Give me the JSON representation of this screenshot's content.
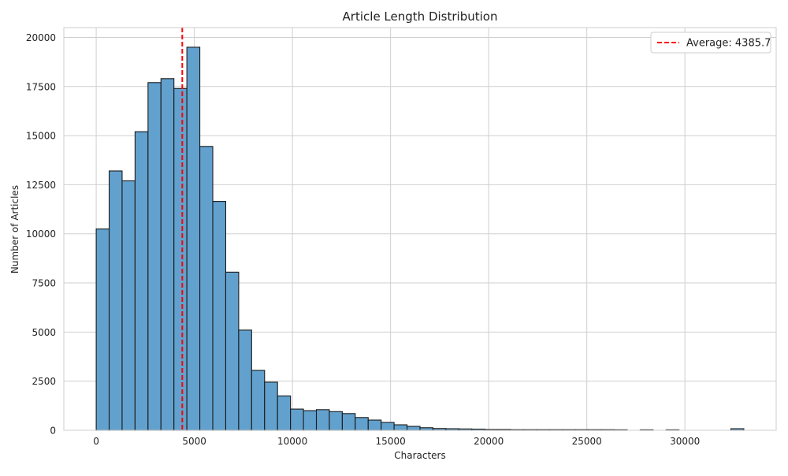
{
  "chart_data": {
    "type": "bar",
    "title": "Article Length Distribution",
    "xlabel": "Characters",
    "ylabel": "Number of Articles",
    "xlim": [
      -1650,
      34650
    ],
    "ylim": [
      0,
      20500
    ],
    "xticks": [
      0,
      5000,
      10000,
      15000,
      20000,
      25000,
      30000
    ],
    "yticks": [
      0,
      2500,
      5000,
      7500,
      10000,
      12500,
      15000,
      17500,
      20000
    ],
    "grid": true,
    "legend": {
      "placement": "top-right",
      "entries": [
        "Average: 4385.7"
      ]
    },
    "bar_color": "#5f9fcd",
    "bar_edge_color": "#1a1a1a",
    "bin_edges": [
      0,
      660,
      1320,
      1980,
      2640,
      3300,
      3960,
      4620,
      5280,
      5940,
      6600,
      7260,
      7920,
      8580,
      9240,
      9900,
      10560,
      11220,
      11880,
      12540,
      13200,
      13860,
      14520,
      15180,
      15840,
      16500,
      17160,
      17820,
      18480,
      19140,
      19800,
      20460,
      21120,
      21780,
      22440,
      23100,
      23760,
      24420,
      25080,
      25740,
      26400,
      27060,
      27720,
      28380,
      29040,
      29700,
      30360,
      31020,
      31680,
      32340,
      33000
    ],
    "counts": [
      10250,
      13200,
      12700,
      15200,
      17700,
      17900,
      17400,
      19500,
      14450,
      11650,
      8050,
      5100,
      3050,
      2450,
      1750,
      1080,
      1000,
      1050,
      950,
      850,
      650,
      520,
      400,
      280,
      200,
      130,
      90,
      80,
      70,
      60,
      40,
      40,
      30,
      30,
      30,
      30,
      30,
      30,
      30,
      30,
      25,
      0,
      25,
      0,
      25,
      0,
      0,
      0,
      0,
      80
    ],
    "mean_line": {
      "label": "Average: 4385.7",
      "value": 4385.7,
      "color": "#ff0000",
      "style": "dashed"
    }
  }
}
